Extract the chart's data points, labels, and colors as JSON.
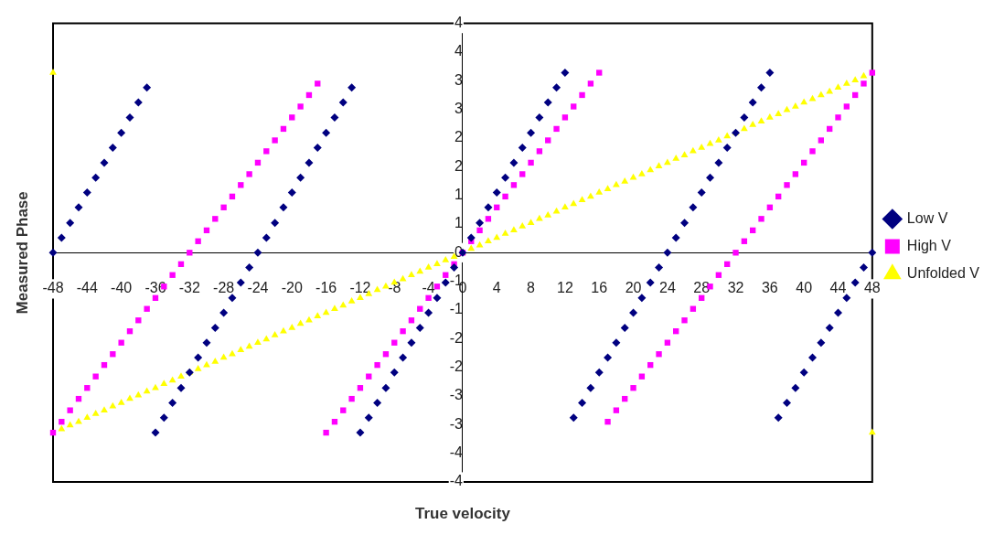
{
  "chart_data": {
    "type": "scatter",
    "xlabel": "True velocity",
    "ylabel": "Measured Phase",
    "x": [
      -48,
      -47,
      -46,
      -45,
      -44,
      -43,
      -42,
      -41,
      -40,
      -39,
      -38,
      -37,
      -36,
      -35,
      -34,
      -33,
      -32,
      -31,
      -30,
      -29,
      -28,
      -27,
      -26,
      -25,
      -24,
      -23,
      -22,
      -21,
      -20,
      -19,
      -18,
      -17,
      -16,
      -15,
      -14,
      -13,
      -12,
      -11,
      -10,
      -9,
      -8,
      -7,
      -6,
      -5,
      -4,
      -3,
      -2,
      -1,
      0,
      1,
      2,
      3,
      4,
      5,
      6,
      7,
      8,
      9,
      10,
      11,
      12,
      13,
      14,
      15,
      16,
      17,
      18,
      19,
      20,
      21,
      22,
      23,
      24,
      25,
      26,
      27,
      28,
      29,
      30,
      31,
      32,
      33,
      34,
      35,
      36,
      37,
      38,
      39,
      40,
      41,
      42,
      43,
      44,
      45,
      46,
      47,
      48
    ],
    "series": [
      {
        "name": "Low V",
        "color": "#000080",
        "marker": "diamond",
        "values": [
          0,
          0.26,
          0.52,
          0.79,
          1.05,
          1.31,
          1.57,
          1.83,
          2.09,
          2.36,
          2.62,
          2.88,
          -3.14,
          -2.88,
          -2.62,
          -2.36,
          -2.09,
          -1.83,
          -1.57,
          -1.31,
          -1.05,
          -0.79,
          -0.52,
          -0.26,
          0,
          0.26,
          0.52,
          0.79,
          1.05,
          1.31,
          1.57,
          1.83,
          2.09,
          2.36,
          2.62,
          2.88,
          -3.14,
          -2.88,
          -2.62,
          -2.36,
          -2.09,
          -1.83,
          -1.57,
          -1.31,
          -1.05,
          -0.79,
          -0.52,
          -0.26,
          0,
          0.26,
          0.52,
          0.79,
          1.05,
          1.31,
          1.57,
          1.83,
          2.09,
          2.36,
          2.62,
          2.88,
          3.14,
          -2.88,
          -2.62,
          -2.36,
          -2.09,
          -1.83,
          -1.57,
          -1.31,
          -1.05,
          -0.79,
          -0.52,
          -0.26,
          0,
          0.26,
          0.52,
          0.79,
          1.05,
          1.31,
          1.57,
          1.83,
          2.09,
          2.36,
          2.62,
          2.88,
          3.14,
          -2.88,
          -2.62,
          -2.36,
          -2.09,
          -1.83,
          -1.57,
          -1.31,
          -1.05,
          -0.79,
          -0.52,
          -0.26,
          0
        ]
      },
      {
        "name": "High V",
        "color": "#ff00ff",
        "marker": "square",
        "values": [
          -3.14,
          -2.95,
          -2.75,
          -2.55,
          -2.36,
          -2.16,
          -1.96,
          -1.77,
          -1.57,
          -1.37,
          -1.18,
          -0.98,
          -0.79,
          -0.59,
          -0.39,
          -0.2,
          0,
          0.2,
          0.39,
          0.59,
          0.79,
          0.98,
          1.18,
          1.37,
          1.57,
          1.77,
          1.96,
          2.16,
          2.36,
          2.55,
          2.75,
          2.95,
          -3.14,
          -2.95,
          -2.75,
          -2.55,
          -2.36,
          -2.16,
          -1.96,
          -1.77,
          -1.57,
          -1.37,
          -1.18,
          -0.98,
          -0.79,
          -0.59,
          -0.39,
          -0.2,
          0,
          0.2,
          0.39,
          0.59,
          0.79,
          0.98,
          1.18,
          1.37,
          1.57,
          1.77,
          1.96,
          2.16,
          2.36,
          2.55,
          2.75,
          2.95,
          3.14,
          -2.95,
          -2.75,
          -2.55,
          -2.36,
          -2.16,
          -1.96,
          -1.77,
          -1.57,
          -1.37,
          -1.18,
          -0.98,
          -0.79,
          -0.59,
          -0.39,
          -0.2,
          0,
          0.2,
          0.39,
          0.59,
          0.79,
          0.98,
          1.18,
          1.37,
          1.57,
          1.77,
          1.96,
          2.16,
          2.36,
          2.55,
          2.75,
          2.95,
          3.14
        ]
      },
      {
        "name": "Unfolded V",
        "color": "#ffff00",
        "marker": "triangle",
        "x": [
          -47,
          -46,
          -45,
          -44,
          -43,
          -42,
          -41,
          -40,
          -39,
          -38,
          -37,
          -36,
          -35,
          -34,
          -33,
          -32,
          -31,
          -30,
          -29,
          -28,
          -27,
          -26,
          -25,
          -24,
          -23,
          -22,
          -21,
          -20,
          -19,
          -18,
          -17,
          -16,
          -15,
          -14,
          -13,
          -12,
          -11,
          -10,
          -9,
          -8,
          -7,
          -6,
          -5,
          -4,
          -3,
          -2,
          -1,
          0,
          1,
          2,
          3,
          4,
          5,
          6,
          7,
          8,
          9,
          10,
          11,
          12,
          13,
          14,
          15,
          16,
          17,
          18,
          19,
          20,
          21,
          22,
          23,
          24,
          25,
          26,
          27,
          28,
          29,
          30,
          31,
          32,
          33,
          34,
          35,
          36,
          37,
          38,
          39,
          40,
          41,
          42,
          43,
          44,
          45,
          46,
          47,
          -48,
          48
        ],
        "values": [
          -3.08,
          -3.01,
          -2.95,
          -2.88,
          -2.81,
          -2.75,
          -2.68,
          -2.62,
          -2.55,
          -2.49,
          -2.42,
          -2.36,
          -2.29,
          -2.23,
          -2.16,
          -2.09,
          -2.03,
          -1.96,
          -1.9,
          -1.83,
          -1.77,
          -1.7,
          -1.64,
          -1.57,
          -1.51,
          -1.44,
          -1.37,
          -1.31,
          -1.24,
          -1.18,
          -1.11,
          -1.05,
          -0.98,
          -0.92,
          -0.85,
          -0.79,
          -0.72,
          -0.65,
          -0.59,
          -0.52,
          -0.46,
          -0.39,
          -0.33,
          -0.26,
          -0.2,
          -0.13,
          -0.07,
          0,
          0.07,
          0.13,
          0.2,
          0.26,
          0.33,
          0.39,
          0.46,
          0.52,
          0.59,
          0.65,
          0.72,
          0.79,
          0.85,
          0.92,
          0.98,
          1.05,
          1.11,
          1.18,
          1.24,
          1.31,
          1.37,
          1.44,
          1.51,
          1.57,
          1.64,
          1.7,
          1.77,
          1.83,
          1.9,
          1.96,
          2.03,
          2.09,
          2.16,
          2.23,
          2.29,
          2.36,
          2.42,
          2.49,
          2.55,
          2.62,
          2.68,
          2.75,
          2.81,
          2.88,
          2.95,
          3.01,
          3.08,
          3.14,
          -3.14
        ]
      }
    ],
    "xlim": [
      -48,
      48
    ],
    "xticks": [
      -48,
      -44,
      -40,
      -36,
      -32,
      -28,
      -24,
      -20,
      -16,
      -12,
      -8,
      -4,
      0,
      4,
      8,
      12,
      16,
      20,
      24,
      28,
      32,
      36,
      40,
      44,
      48
    ],
    "ylim": [
      -4,
      4
    ],
    "yticks": [
      {
        "value": -4,
        "label": "-4"
      },
      {
        "value": -3.5,
        "label": "-4"
      },
      {
        "value": -3,
        "label": "-3"
      },
      {
        "value": -2.5,
        "label": "-3"
      },
      {
        "value": -2,
        "label": "-2"
      },
      {
        "value": -1.5,
        "label": "-2"
      },
      {
        "value": -1,
        "label": "-1"
      },
      {
        "value": -0.5,
        "label": "-1"
      },
      {
        "value": 0,
        "label": "0"
      },
      {
        "value": 0.5,
        "label": "1"
      },
      {
        "value": 1,
        "label": "1"
      },
      {
        "value": 1.5,
        "label": "2"
      },
      {
        "value": 2,
        "label": "2"
      },
      {
        "value": 2.5,
        "label": "3"
      },
      {
        "value": 3,
        "label": "3"
      },
      {
        "value": 3.5,
        "label": "4"
      },
      {
        "value": 4,
        "label": "4"
      }
    ],
    "grid": false,
    "legend": "right"
  }
}
